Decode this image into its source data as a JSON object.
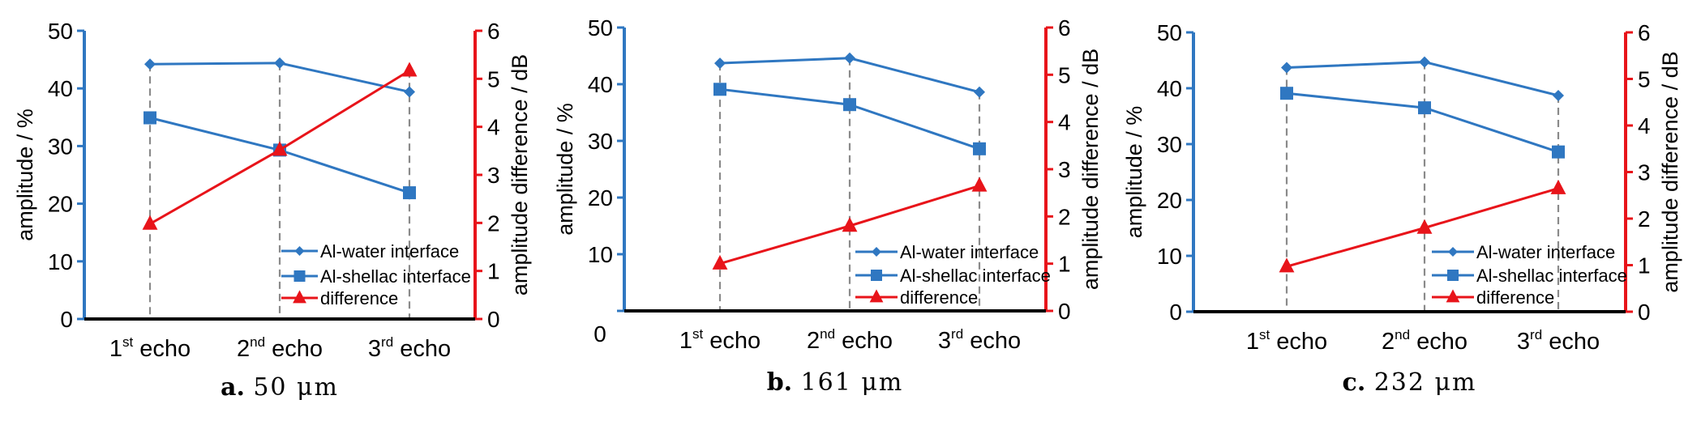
{
  "chart_data": [
    {
      "type": "line",
      "caption_letter": "a.",
      "caption_value": "50 μm",
      "ylabel": "amplitude / %",
      "y2label": "amplitude difference / dB",
      "ylim": [
        0,
        50
      ],
      "y2lim": [
        0,
        6
      ],
      "yticks": [
        "0",
        "10",
        "20",
        "30",
        "40",
        "50"
      ],
      "y2ticks": [
        "0",
        "1",
        "2",
        "3",
        "4",
        "5",
        "6"
      ],
      "x0_label": "",
      "categories": [
        {
          "num": "1",
          "sup": "st",
          "word": " echo"
        },
        {
          "num": "2",
          "sup": "nd",
          "word": " echo"
        },
        {
          "num": "3",
          "sup": "rd",
          "word": " echo"
        }
      ],
      "series": [
        {
          "name": "Al-water interface",
          "axis": "left",
          "marker": "diamond",
          "color": "#2f77c1",
          "values": [
            44.2,
            44.4,
            39.4
          ]
        },
        {
          "name": "Al-shellac interface",
          "axis": "left",
          "marker": "square",
          "color": "#2f77c1",
          "values": [
            34.9,
            29.3,
            21.9
          ]
        },
        {
          "name": "difference",
          "axis": "right",
          "marker": "triangle",
          "color": "#e8141a",
          "values": [
            1.98,
            3.52,
            5.17
          ]
        }
      ]
    },
    {
      "type": "line",
      "caption_letter": "b.",
      "caption_value": "161 μm",
      "ylabel": "amplitude / %",
      "y2label": "amplitude difference / dB",
      "ylim": [
        0,
        50
      ],
      "y2lim": [
        0,
        6
      ],
      "yticks": [
        "",
        "10",
        "20",
        "30",
        "40",
        "50"
      ],
      "y2ticks": [
        "0",
        "1",
        "2",
        "3",
        "4",
        "5",
        "6"
      ],
      "x0_label": "0",
      "categories": [
        {
          "num": "1",
          "sup": "st",
          "word": " echo"
        },
        {
          "num": "2",
          "sup": "nd",
          "word": " echo"
        },
        {
          "num": "3",
          "sup": "rd",
          "word": " echo"
        }
      ],
      "series": [
        {
          "name": "Al-water interface",
          "axis": "left",
          "marker": "diamond",
          "color": "#2f77c1",
          "values": [
            43.7,
            44.6,
            38.6
          ]
        },
        {
          "name": "Al-shellac interface",
          "axis": "left",
          "marker": "square",
          "color": "#2f77c1",
          "values": [
            39.1,
            36.4,
            28.6
          ]
        },
        {
          "name": "difference",
          "axis": "right",
          "marker": "triangle",
          "color": "#e8141a",
          "values": [
            1.0,
            1.8,
            2.65
          ]
        }
      ]
    },
    {
      "type": "line",
      "caption_letter": "c.",
      "caption_value": "232 μm",
      "ylabel": "amplitude / %",
      "y2label": "amplitude difference / dB",
      "ylim": [
        0,
        50
      ],
      "y2lim": [
        0,
        6
      ],
      "yticks": [
        "0",
        "10",
        "20",
        "30",
        "40",
        "50"
      ],
      "y2ticks": [
        "0",
        "1",
        "2",
        "3",
        "4",
        "5",
        "6"
      ],
      "x0_label": "",
      "categories": [
        {
          "num": "1",
          "sup": "st",
          "word": " echo"
        },
        {
          "num": "2",
          "sup": "nd",
          "word": " echo"
        },
        {
          "num": "3",
          "sup": "rd",
          "word": " echo"
        }
      ],
      "series": [
        {
          "name": "Al-water interface",
          "axis": "left",
          "marker": "diamond",
          "color": "#2f77c1",
          "values": [
            43.7,
            44.7,
            38.7
          ]
        },
        {
          "name": "Al-shellac interface",
          "axis": "left",
          "marker": "square",
          "color": "#2f77c1",
          "values": [
            39.1,
            36.5,
            28.6
          ]
        },
        {
          "name": "difference",
          "axis": "right",
          "marker": "triangle",
          "color": "#e8141a",
          "values": [
            0.97,
            1.8,
            2.65
          ]
        }
      ]
    }
  ],
  "colors": {
    "left_axis": "#2f77c1",
    "right_axis": "#e8141a",
    "baseline": "#000000",
    "dropline": "#8a8a8a"
  }
}
